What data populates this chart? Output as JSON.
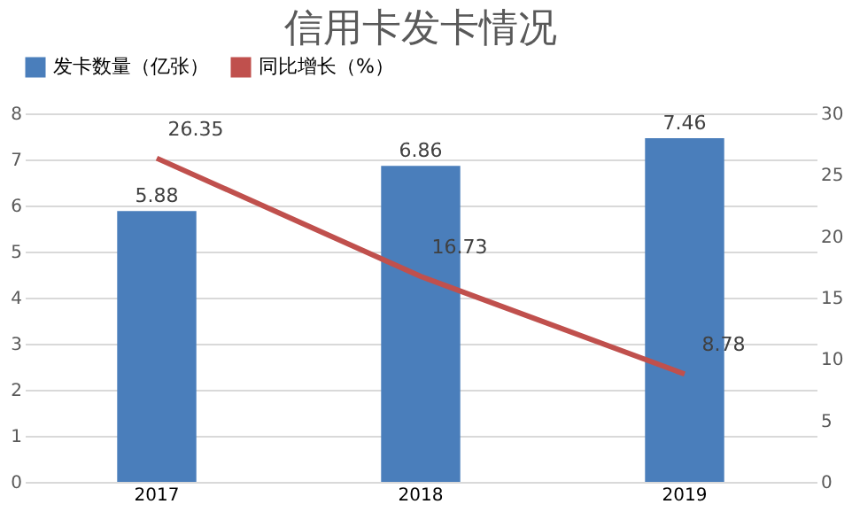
{
  "chart_data": {
    "type": "bar",
    "title": "信用卡发卡情况",
    "categories": [
      "2017",
      "2018",
      "2019"
    ],
    "series": [
      {
        "name": "发卡数量（亿张）",
        "color": "#4a7ebb",
        "values": [
          5.88,
          6.86,
          7.46
        ]
      },
      {
        "name": "同比增长（%）",
        "type": "line",
        "axis": "y2",
        "color": "#c0504d",
        "values": [
          26.35,
          16.73,
          8.78
        ]
      }
    ],
    "ylim": [
      0,
      8
    ],
    "yticks": [
      0,
      1,
      2,
      3,
      4,
      5,
      6,
      7,
      8
    ],
    "y2lim": [
      0,
      30
    ],
    "y2ticks": [
      0,
      5,
      10,
      15,
      20,
      25,
      30
    ],
    "grid": "y",
    "legend": "top",
    "data_labels": true,
    "marker": "none",
    "line_style": "solid"
  }
}
